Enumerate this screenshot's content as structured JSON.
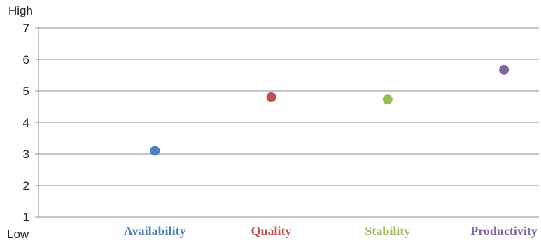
{
  "chart_data": {
    "type": "scatter",
    "categories": [
      "Availability",
      "Quality",
      "Stability",
      "Productivity"
    ],
    "values": [
      3.1,
      4.8,
      4.73,
      5.67
    ],
    "colors": [
      "#4f81bd",
      "#c0504d",
      "#9bbb59",
      "#8064a2"
    ],
    "ylim": [
      1,
      7
    ],
    "yticks": [
      1,
      2,
      3,
      4,
      5,
      6,
      7
    ],
    "y_high_label": "High",
    "y_low_label": "Low",
    "grid": true
  }
}
